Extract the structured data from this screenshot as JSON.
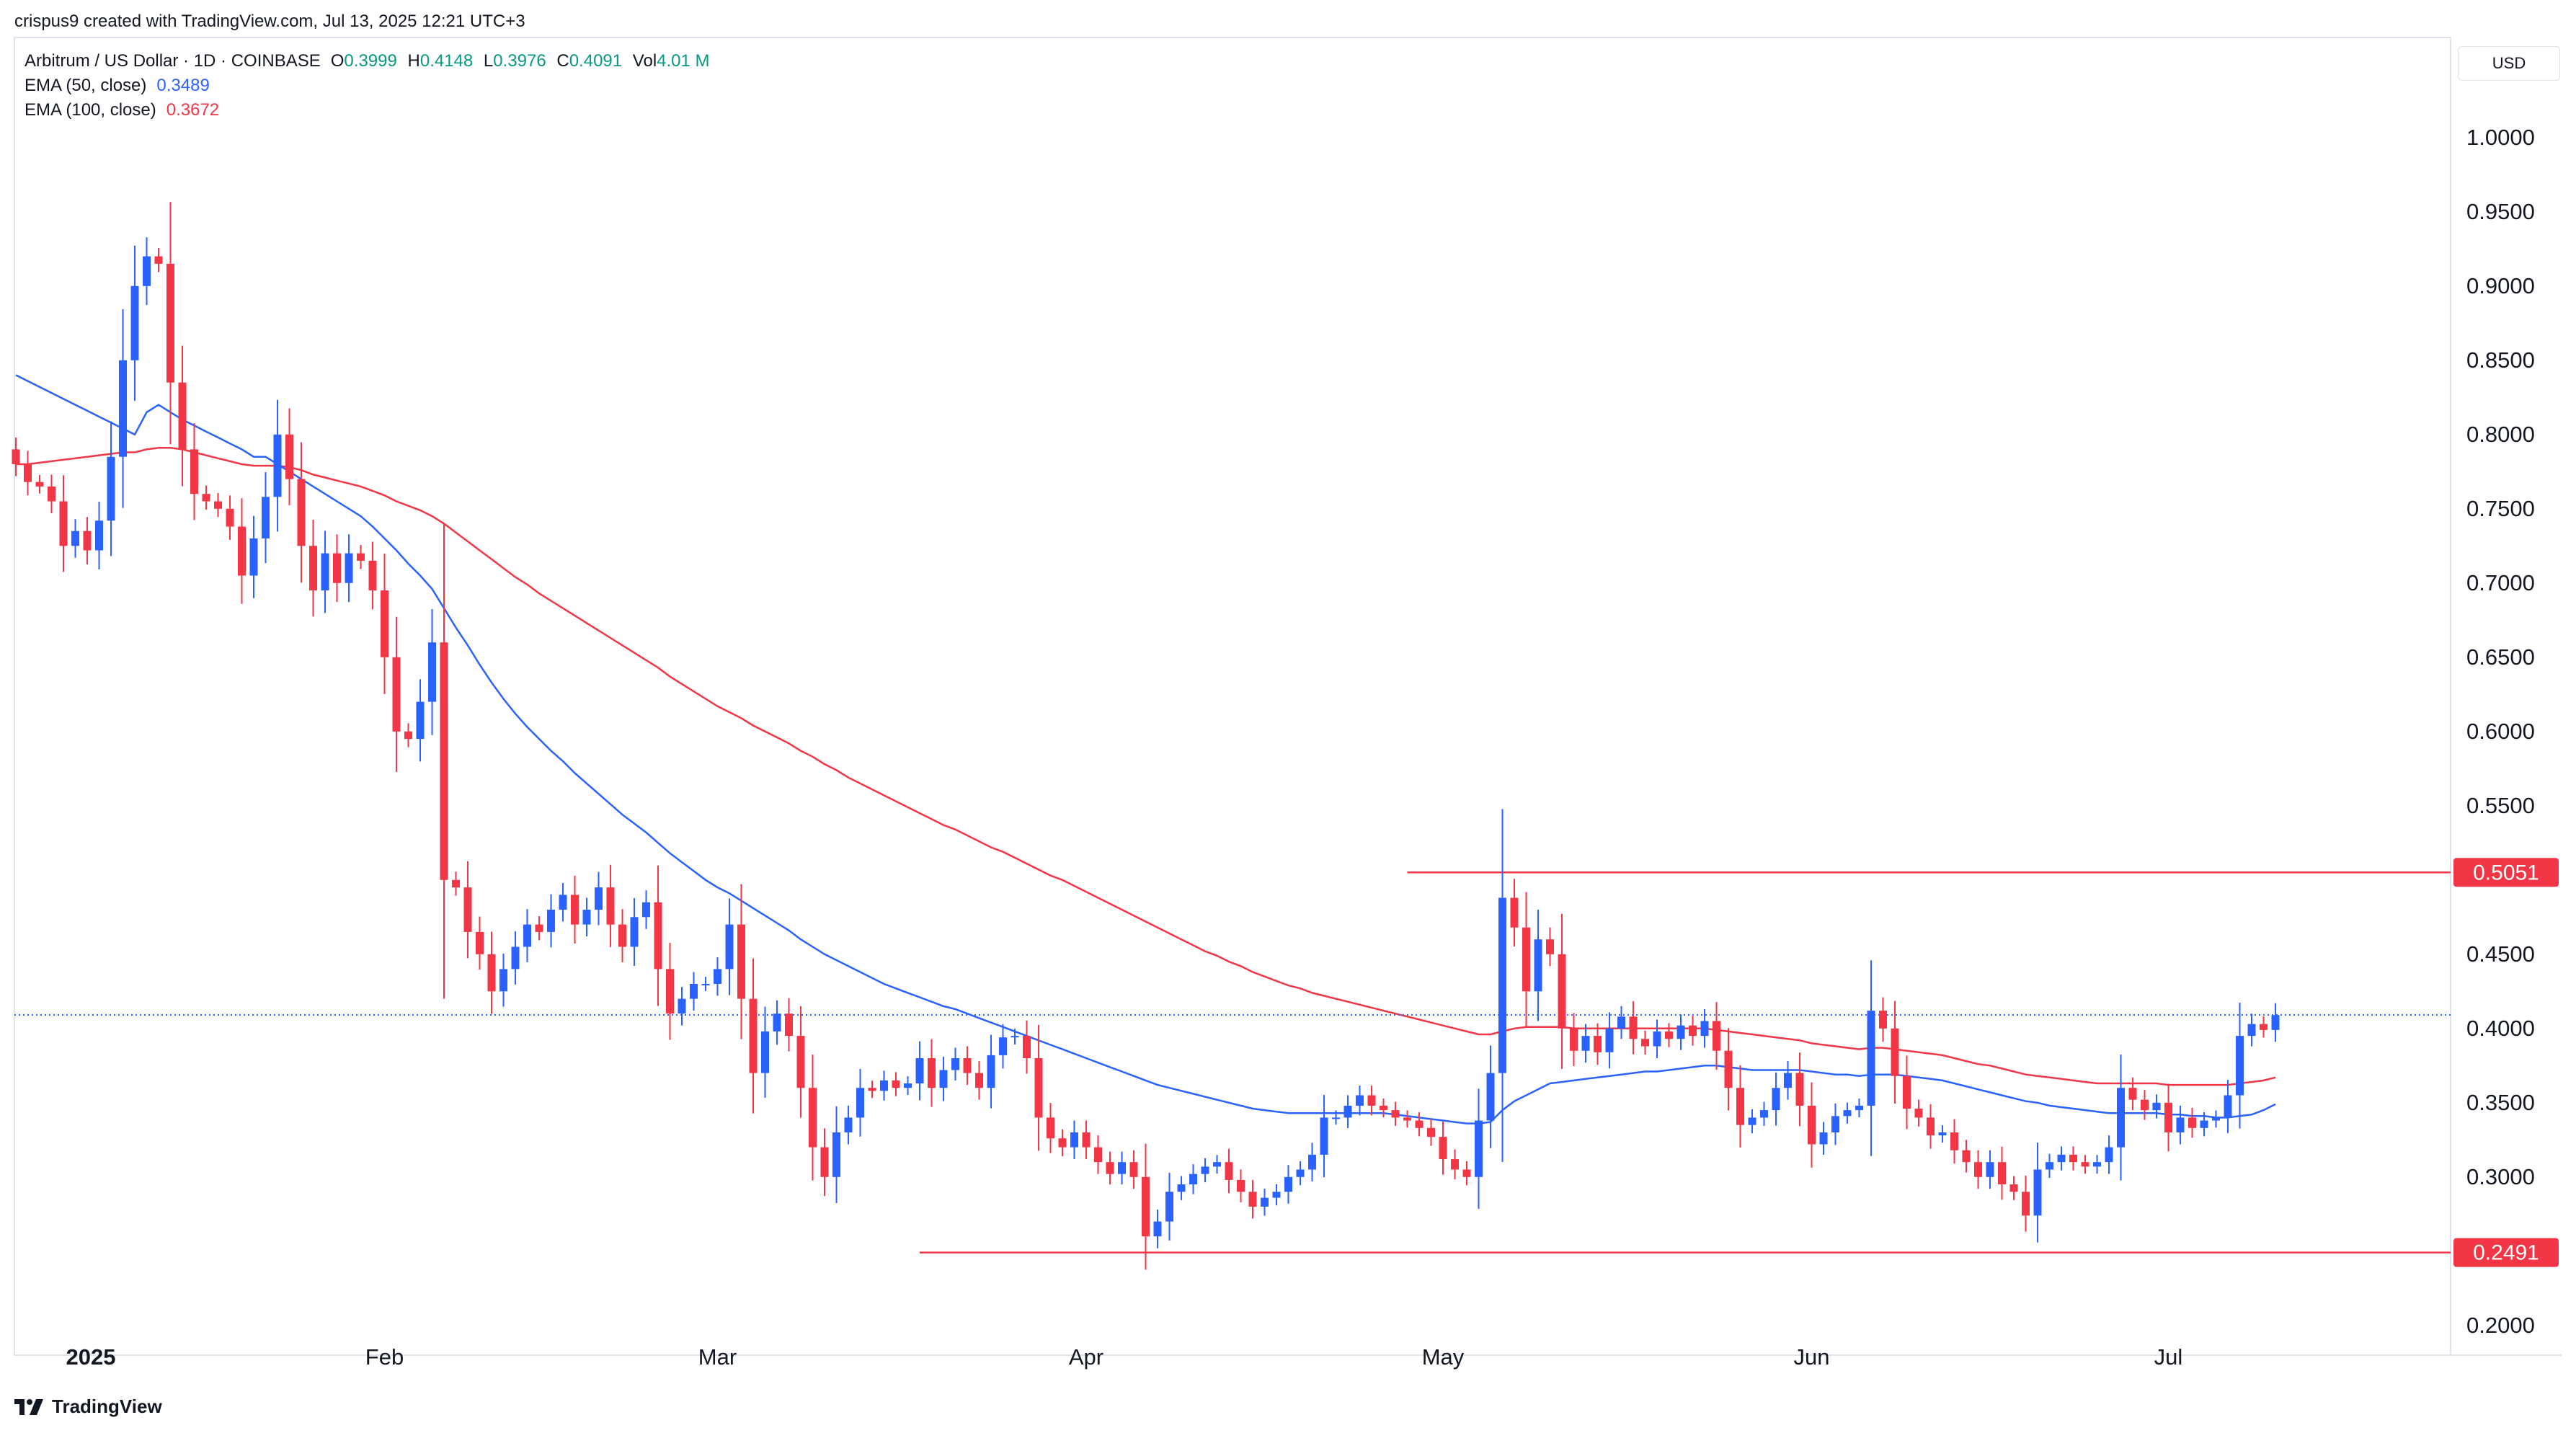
{
  "header": {
    "credit": "crispus9 created with TradingView.com, Jul 13, 2025 12:21 UTC+3"
  },
  "legend": {
    "symbol": "Arbitrum / US Dollar · 1D · COINBASE",
    "ohlc": [
      {
        "key": "O",
        "value": "0.3999"
      },
      {
        "key": "H",
        "value": "0.4148"
      },
      {
        "key": "L",
        "value": "0.3976"
      },
      {
        "key": "C",
        "value": "0.4091"
      },
      {
        "key": "Vol",
        "value": "4.01 M"
      }
    ],
    "ema50": {
      "label": "EMA (50, close)",
      "value": "0.3489",
      "color": "#2962ff"
    },
    "ema100": {
      "label": "EMA (100, close)",
      "value": "0.3672",
      "color": "#f23645"
    }
  },
  "currency": "USD",
  "brand": {
    "name": "TradingView"
  },
  "colors": {
    "up": "#2962ff",
    "down": "#f23645",
    "ema50": "#2962ff",
    "ema100": "#f23645",
    "level_line": "#f23645",
    "current_price_line": "#2962ff",
    "axis_text": "#131722"
  },
  "chart_data": {
    "type": "candlestick",
    "interval": "1D",
    "ylim": [
      0.18,
      1.03
    ],
    "y_ticks": [
      "1.0000",
      "0.9500",
      "0.9000",
      "0.8500",
      "0.8000",
      "0.7500",
      "0.7000",
      "0.6500",
      "0.6000",
      "0.5500",
      "0.5000",
      "0.4500",
      "0.4000",
      "0.3500",
      "0.3000",
      "0.2500",
      "0.2000"
    ],
    "x_labels": [
      {
        "label": "2025",
        "bar": 0,
        "bold": true
      },
      {
        "label": "Feb",
        "bar": 31
      },
      {
        "label": "Mar",
        "bar": 59
      },
      {
        "label": "Apr",
        "bar": 90
      },
      {
        "label": "May",
        "bar": 120
      },
      {
        "label": "Jun",
        "bar": 151
      },
      {
        "label": "Jul",
        "bar": 181
      }
    ],
    "first_bar_date": "2025-01-01",
    "current_price": 0.4091,
    "levels": [
      {
        "value": 0.5051,
        "label": "0.5051",
        "from_bar": 117
      },
      {
        "value": 0.2491,
        "label": "0.2491",
        "from_bar": 76
      }
    ],
    "closes": [
      0.78,
      0.768,
      0.765,
      0.755,
      0.725,
      0.735,
      0.722,
      0.742,
      0.785,
      0.85,
      0.9,
      0.92,
      0.915,
      0.835,
      0.79,
      0.76,
      0.755,
      0.75,
      0.738,
      0.705,
      0.73,
      0.758,
      0.8,
      0.77,
      0.725,
      0.695,
      0.72,
      0.7,
      0.72,
      0.715,
      0.695,
      0.65,
      0.6,
      0.595,
      0.62,
      0.66,
      0.5,
      0.495,
      0.465,
      0.45,
      0.425,
      0.44,
      0.455,
      0.47,
      0.465,
      0.48,
      0.49,
      0.47,
      0.48,
      0.495,
      0.47,
      0.455,
      0.475,
      0.485,
      0.44,
      0.41,
      0.42,
      0.43,
      0.43,
      0.44,
      0.47,
      0.42,
      0.37,
      0.398,
      0.41,
      0.395,
      0.36,
      0.32,
      0.3,
      0.33,
      0.34,
      0.36,
      0.358,
      0.365,
      0.36,
      0.363,
      0.38,
      0.36,
      0.372,
      0.38,
      0.37,
      0.36,
      0.382,
      0.394,
      0.395,
      0.38,
      0.34,
      0.326,
      0.32,
      0.33,
      0.32,
      0.31,
      0.302,
      0.31,
      0.3,
      0.26,
      0.27,
      0.29,
      0.295,
      0.302,
      0.307,
      0.31,
      0.298,
      0.29,
      0.28,
      0.286,
      0.29,
      0.3,
      0.305,
      0.315,
      0.34,
      0.34,
      0.348,
      0.355,
      0.348,
      0.345,
      0.34,
      0.338,
      0.333,
      0.327,
      0.312,
      0.305,
      0.3,
      0.338,
      0.37,
      0.488,
      0.468,
      0.425,
      0.46,
      0.45,
      0.4,
      0.385,
      0.395,
      0.384,
      0.4,
      0.408,
      0.393,
      0.388,
      0.398,
      0.393,
      0.402,
      0.395,
      0.405,
      0.385,
      0.36,
      0.335,
      0.34,
      0.345,
      0.36,
      0.37,
      0.348,
      0.322,
      0.33,
      0.341,
      0.345,
      0.348,
      0.412,
      0.4,
      0.368,
      0.346,
      0.34,
      0.328,
      0.33,
      0.318,
      0.31,
      0.3,
      0.31,
      0.295,
      0.29,
      0.274,
      0.305,
      0.31,
      0.315,
      0.31,
      0.307,
      0.31,
      0.32,
      0.36,
      0.352,
      0.345,
      0.35,
      0.33,
      0.34,
      0.333,
      0.338,
      0.34,
      0.355,
      0.395,
      0.403,
      0.399,
      0.409
    ],
    "ema50": [
      0.84,
      0.836,
      0.832,
      0.828,
      0.824,
      0.82,
      0.816,
      0.812,
      0.808,
      0.804,
      0.8,
      0.815,
      0.82,
      0.815,
      0.81,
      0.806,
      0.802,
      0.798,
      0.794,
      0.79,
      0.785,
      0.785,
      0.78,
      0.775,
      0.77,
      0.765,
      0.76,
      0.755,
      0.75,
      0.745,
      0.738,
      0.73,
      0.722,
      0.713,
      0.705,
      0.696,
      0.683,
      0.67,
      0.658,
      0.645,
      0.633,
      0.622,
      0.612,
      0.603,
      0.595,
      0.587,
      0.58,
      0.572,
      0.565,
      0.558,
      0.551,
      0.544,
      0.538,
      0.532,
      0.525,
      0.518,
      0.512,
      0.506,
      0.5,
      0.495,
      0.491,
      0.486,
      0.481,
      0.476,
      0.471,
      0.466,
      0.46,
      0.455,
      0.45,
      0.446,
      0.442,
      0.438,
      0.434,
      0.43,
      0.427,
      0.424,
      0.421,
      0.418,
      0.415,
      0.413,
      0.41,
      0.407,
      0.404,
      0.401,
      0.398,
      0.395,
      0.392,
      0.389,
      0.386,
      0.383,
      0.38,
      0.377,
      0.374,
      0.371,
      0.368,
      0.365,
      0.362,
      0.36,
      0.358,
      0.356,
      0.354,
      0.352,
      0.35,
      0.348,
      0.346,
      0.345,
      0.344,
      0.343,
      0.343,
      0.343,
      0.343,
      0.343,
      0.343,
      0.343,
      0.343,
      0.343,
      0.342,
      0.341,
      0.34,
      0.339,
      0.338,
      0.337,
      0.336,
      0.336,
      0.337,
      0.345,
      0.351,
      0.355,
      0.359,
      0.363,
      0.364,
      0.365,
      0.366,
      0.367,
      0.368,
      0.369,
      0.37,
      0.371,
      0.371,
      0.372,
      0.373,
      0.374,
      0.375,
      0.375,
      0.374,
      0.373,
      0.372,
      0.372,
      0.372,
      0.372,
      0.372,
      0.371,
      0.37,
      0.369,
      0.369,
      0.368,
      0.369,
      0.369,
      0.369,
      0.368,
      0.367,
      0.366,
      0.365,
      0.363,
      0.361,
      0.359,
      0.357,
      0.355,
      0.353,
      0.351,
      0.35,
      0.348,
      0.347,
      0.346,
      0.345,
      0.344,
      0.343,
      0.343,
      0.343,
      0.343,
      0.343,
      0.342,
      0.342,
      0.341,
      0.341,
      0.34,
      0.34,
      0.341,
      0.342,
      0.345,
      0.349
    ],
    "ema100": [
      0.78,
      0.78,
      0.781,
      0.782,
      0.783,
      0.784,
      0.785,
      0.786,
      0.787,
      0.788,
      0.788,
      0.79,
      0.791,
      0.791,
      0.79,
      0.788,
      0.786,
      0.784,
      0.782,
      0.78,
      0.779,
      0.779,
      0.779,
      0.778,
      0.776,
      0.773,
      0.771,
      0.769,
      0.767,
      0.765,
      0.762,
      0.759,
      0.755,
      0.752,
      0.749,
      0.745,
      0.74,
      0.734,
      0.728,
      0.722,
      0.716,
      0.71,
      0.704,
      0.699,
      0.693,
      0.688,
      0.683,
      0.678,
      0.673,
      0.668,
      0.663,
      0.658,
      0.653,
      0.648,
      0.643,
      0.637,
      0.632,
      0.627,
      0.622,
      0.617,
      0.613,
      0.609,
      0.604,
      0.6,
      0.596,
      0.592,
      0.587,
      0.583,
      0.578,
      0.574,
      0.569,
      0.565,
      0.561,
      0.557,
      0.553,
      0.549,
      0.545,
      0.541,
      0.537,
      0.534,
      0.53,
      0.526,
      0.522,
      0.519,
      0.515,
      0.511,
      0.507,
      0.503,
      0.5,
      0.496,
      0.492,
      0.488,
      0.484,
      0.48,
      0.476,
      0.472,
      0.468,
      0.464,
      0.46,
      0.456,
      0.452,
      0.449,
      0.445,
      0.442,
      0.438,
      0.435,
      0.432,
      0.429,
      0.427,
      0.424,
      0.422,
      0.42,
      0.418,
      0.416,
      0.414,
      0.412,
      0.41,
      0.408,
      0.406,
      0.404,
      0.402,
      0.4,
      0.398,
      0.396,
      0.396,
      0.398,
      0.4,
      0.401,
      0.401,
      0.401,
      0.401,
      0.4,
      0.4,
      0.4,
      0.4,
      0.4,
      0.4,
      0.4,
      0.4,
      0.4,
      0.4,
      0.4,
      0.4,
      0.399,
      0.398,
      0.397,
      0.396,
      0.395,
      0.394,
      0.393,
      0.392,
      0.39,
      0.389,
      0.388,
      0.387,
      0.386,
      0.387,
      0.387,
      0.386,
      0.385,
      0.384,
      0.383,
      0.382,
      0.38,
      0.378,
      0.376,
      0.375,
      0.373,
      0.371,
      0.369,
      0.368,
      0.367,
      0.366,
      0.365,
      0.364,
      0.363,
      0.363,
      0.363,
      0.363,
      0.363,
      0.363,
      0.362,
      0.362,
      0.362,
      0.362,
      0.362,
      0.362,
      0.363,
      0.364,
      0.365,
      0.367
    ]
  }
}
